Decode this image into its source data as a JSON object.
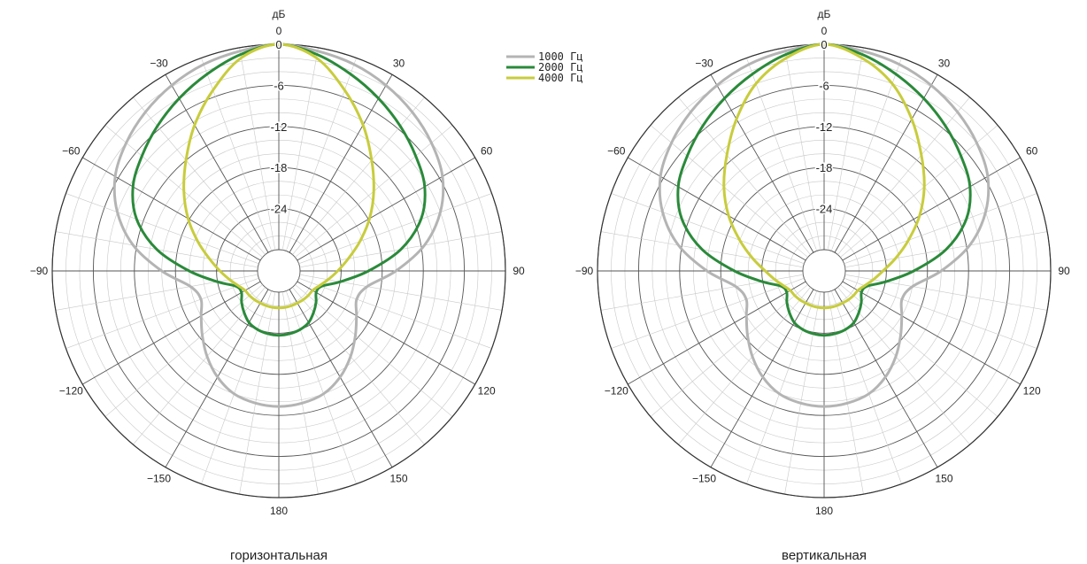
{
  "chart_data": [
    {
      "type": "polar",
      "title": "горизонтальная",
      "radial_unit": "дБ",
      "radial_ticks": [
        0,
        -6,
        -12,
        -18,
        -24
      ],
      "angle_ticks": [
        0,
        30,
        60,
        90,
        120,
        150,
        180,
        -150,
        -120,
        -90,
        -60,
        -30
      ],
      "angle_ticks_labels": [
        "0",
        "30",
        "60",
        "90",
        "120",
        "150",
        "180",
        "−150",
        "−120",
        "−90",
        "−60",
        "−30"
      ],
      "rlim": [
        -30,
        0
      ],
      "grid": true,
      "legend": [
        "1000 Гц",
        "2000 Гц",
        "4000 Гц"
      ],
      "legend_position": "top-right",
      "series": [
        {
          "name": "1000 Гц",
          "color": "#b4b4b4",
          "angles": [
            0,
            10,
            20,
            30,
            40,
            50,
            60,
            70,
            80,
            90,
            100,
            110,
            120,
            130,
            140,
            150,
            160,
            170,
            180
          ],
          "values": [
            0,
            -0.5,
            -1,
            -1.8,
            -2.8,
            -4,
            -5.5,
            -8,
            -11.5,
            -16,
            -20,
            -21,
            -20,
            -18.5,
            -16.8,
            -15.2,
            -14,
            -13.5,
            -13.3
          ]
        },
        {
          "name": "2000 Гц",
          "color": "#2a8a3a",
          "angles": [
            0,
            10,
            20,
            30,
            40,
            50,
            60,
            70,
            80,
            90,
            100,
            110,
            120,
            130,
            140,
            150,
            160,
            170,
            180
          ],
          "values": [
            0,
            -1,
            -2.5,
            -4,
            -5.5,
            -7,
            -8.5,
            -11,
            -15,
            -20,
            -24,
            -26.5,
            -26.8,
            -26,
            -25.2,
            -24.4,
            -24,
            -23.8,
            -23.7
          ]
        },
        {
          "name": "4000 Гц",
          "color": "#c8cc3c",
          "angles": [
            0,
            10,
            20,
            30,
            40,
            50,
            60,
            70,
            80,
            90,
            100,
            110,
            120,
            130,
            140,
            150,
            160,
            170,
            180
          ],
          "values": [
            0,
            -1.5,
            -5,
            -8.5,
            -12,
            -15,
            -17.8,
            -20.5,
            -22.8,
            -24.5,
            -25.8,
            -26.8,
            -27.4,
            -27.5,
            -27.6,
            -27.7,
            -27.7,
            -27.7,
            -27.7
          ]
        }
      ]
    },
    {
      "type": "polar",
      "title": "вертикальная",
      "radial_unit": "дБ",
      "radial_ticks": [
        0,
        -6,
        -12,
        -18,
        -24
      ],
      "angle_ticks": [
        0,
        30,
        60,
        90,
        120,
        150,
        180,
        -150,
        -120,
        -90,
        -60,
        -30
      ],
      "angle_ticks_labels": [
        "0",
        "30",
        "60",
        "90",
        "120",
        "150",
        "180",
        "−150",
        "−120",
        "−90",
        "−60",
        "−30"
      ],
      "rlim": [
        -30,
        0
      ],
      "grid": true,
      "series": [
        {
          "name": "1000 Гц",
          "color": "#b4b4b4",
          "angles": [
            0,
            10,
            20,
            30,
            40,
            50,
            60,
            70,
            80,
            90,
            100,
            110,
            120,
            130,
            140,
            150,
            160,
            170,
            180
          ],
          "values": [
            0,
            -0.5,
            -1,
            -1.8,
            -2.8,
            -4,
            -5.5,
            -8,
            -11.5,
            -16,
            -20,
            -21,
            -20,
            -18.5,
            -16.8,
            -15.2,
            -14,
            -13.5,
            -13.3
          ]
        },
        {
          "name": "2000 Гц",
          "color": "#2a8a3a",
          "angles": [
            0,
            10,
            20,
            30,
            40,
            50,
            60,
            70,
            80,
            90,
            100,
            110,
            120,
            130,
            140,
            150,
            160,
            170,
            180
          ],
          "values": [
            0,
            -1,
            -2.5,
            -4,
            -5.5,
            -7,
            -8.5,
            -11,
            -15,
            -20,
            -24,
            -26.5,
            -26.8,
            -26,
            -25.2,
            -24.4,
            -24,
            -23.8,
            -23.7
          ]
        },
        {
          "name": "4000 Гц",
          "color": "#c8cc3c",
          "angles": [
            0,
            10,
            20,
            30,
            40,
            50,
            60,
            70,
            80,
            90,
            100,
            110,
            120,
            130,
            140,
            150,
            160,
            170,
            180
          ],
          "values": [
            0,
            -1.5,
            -4,
            -7.5,
            -11,
            -14,
            -17,
            -20,
            -22.5,
            -24.5,
            -25.8,
            -26.8,
            -27.4,
            -27.5,
            -27.6,
            -27.7,
            -27.7,
            -27.7,
            -27.7
          ]
        }
      ]
    }
  ]
}
